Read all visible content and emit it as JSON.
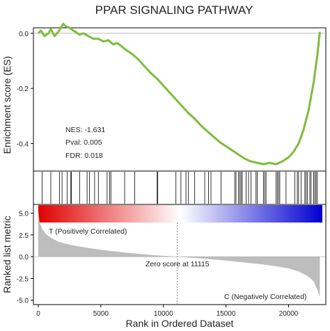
{
  "chart_data": {
    "type": "line",
    "title": "PPAR SIGNALING PATHWAY",
    "xlabel": "Rank in Ordered Dataset",
    "es_panel": {
      "ylabel": "Enrichment score (ES)",
      "ylim": [
        -0.5,
        0.02
      ],
      "yticks": [
        0.0,
        -0.2,
        -0.4
      ],
      "ytick_labels": [
        "0.0",
        "-0.2",
        "-0.4"
      ],
      "line_color": "#7dbd3c",
      "x": [
        0,
        200,
        500,
        800,
        1000,
        1300,
        1600,
        1800,
        2000,
        2200,
        2500,
        2800,
        3000,
        3300,
        3600,
        4000,
        4400,
        4800,
        5200,
        5600,
        6000,
        6300,
        6600,
        7000,
        7500,
        8000,
        8500,
        9000,
        9500,
        10000,
        10500,
        11000,
        11500,
        12000,
        12500,
        13000,
        13500,
        14000,
        14500,
        15000,
        15500,
        16000,
        16500,
        17000,
        17500,
        18000,
        18500,
        19000,
        19500,
        20000,
        20400,
        20800,
        21200,
        21600,
        22000,
        22300,
        22500
      ],
      "y": [
        0.0,
        0.01,
        -0.01,
        0.0,
        0.015,
        -0.01,
        0.005,
        0.02,
        0.035,
        0.025,
        0.02,
        0.01,
        0.005,
        -0.005,
        0.0,
        -0.01,
        -0.02,
        -0.02,
        -0.03,
        -0.025,
        -0.04,
        -0.035,
        -0.045,
        -0.06,
        -0.075,
        -0.095,
        -0.12,
        -0.145,
        -0.165,
        -0.19,
        -0.215,
        -0.24,
        -0.265,
        -0.29,
        -0.31,
        -0.335,
        -0.355,
        -0.375,
        -0.395,
        -0.41,
        -0.425,
        -0.44,
        -0.455,
        -0.465,
        -0.47,
        -0.475,
        -0.47,
        -0.475,
        -0.465,
        -0.45,
        -0.43,
        -0.4,
        -0.35,
        -0.28,
        -0.18,
        -0.08,
        0.005
      ],
      "annotations": [
        "NES: -1.631",
        "Pval: 0.005",
        "FDR: 0.018"
      ],
      "grid": false
    },
    "hits_panel": {
      "hit_positions": [
        300,
        1000,
        1700,
        1900,
        2300,
        2600,
        2650,
        3300,
        3900,
        4100,
        4500,
        4800,
        5500,
        5700,
        5800,
        6900,
        7700,
        9500,
        9550,
        11000,
        11400,
        11800,
        12000,
        12500,
        13300,
        13600,
        13800,
        14600,
        15700,
        15800,
        16000,
        16100,
        16200,
        16300,
        16600,
        16800,
        17000,
        17400,
        17500,
        18000,
        18100,
        18200,
        19000,
        19100,
        19200,
        19300,
        19800,
        20500,
        20700,
        20800,
        21000,
        21300,
        21400,
        21500,
        21700,
        21800,
        22000,
        22100,
        22200,
        22300
      ]
    },
    "gradient_bar": {
      "left_color": "#e00000",
      "mid_color": "#ffffff",
      "right_color": "#0000d0"
    },
    "ranked_panel": {
      "ylabel": "Ranked list metric",
      "ylim": [
        -5.5,
        6.0
      ],
      "yticks": [
        5.0,
        2.5,
        0.0,
        -2.5,
        -5.0
      ],
      "ytick_labels": [
        "5.0",
        "2.5",
        "0.0",
        "-2.5",
        "-5.0"
      ],
      "fill_color": "#bdbdbd",
      "x": [
        0,
        100,
        300,
        600,
        1000,
        1500,
        2000,
        3000,
        4000,
        5000,
        6000,
        7000,
        8000,
        9000,
        10000,
        11115,
        12000,
        13000,
        14000,
        15000,
        16000,
        17000,
        18000,
        19000,
        20000,
        20800,
        21500,
        22000,
        22300,
        22500
      ],
      "y": [
        5.2,
        4.0,
        3.2,
        2.6,
        2.2,
        1.8,
        1.55,
        1.25,
        1.0,
        0.8,
        0.62,
        0.47,
        0.33,
        0.2,
        0.1,
        0.0,
        -0.1,
        -0.2,
        -0.32,
        -0.45,
        -0.6,
        -0.75,
        -0.9,
        -1.1,
        -1.35,
        -1.7,
        -2.2,
        -2.8,
        -3.8,
        -4.6
      ],
      "zero_cross": 11115,
      "zero_label": "Zero score at 11115",
      "pos_label": "T (Positively Correlated)",
      "pos_color": "#e00000",
      "neg_label": "C (Negatively Correlated)",
      "neg_color": "#0000cc"
    },
    "xlim": [
      0,
      22700
    ],
    "xticks": [
      0,
      5000,
      10000,
      15000,
      20000
    ],
    "xtick_labels": [
      "0",
      "5000",
      "10000",
      "15000",
      "20000"
    ]
  }
}
